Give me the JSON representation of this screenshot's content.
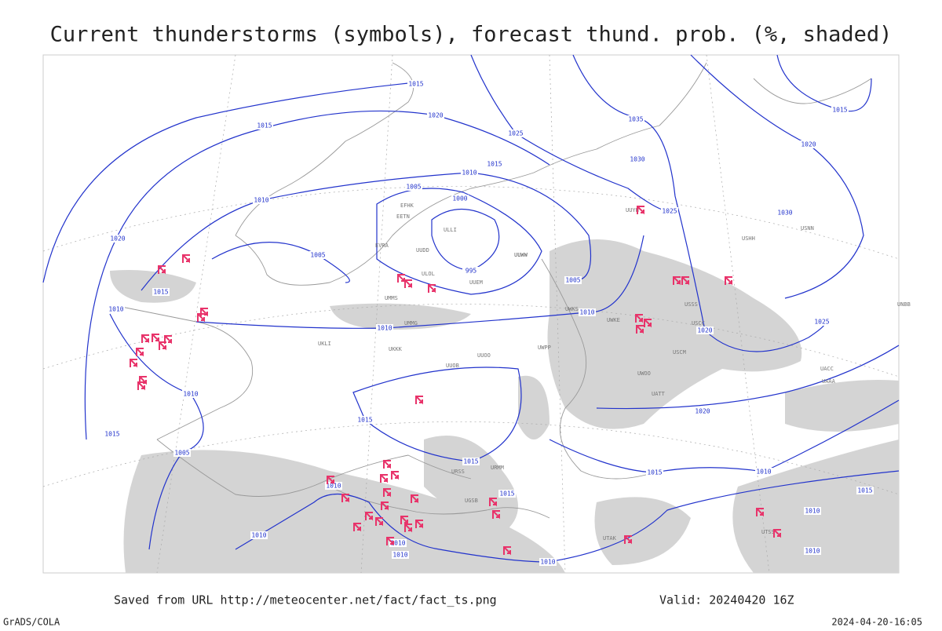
{
  "header": {
    "title": "Current thunderstorms (symbols), forecast thund. prob. (%, shaded)"
  },
  "footer": {
    "source": "Saved from URL http://meteocenter.net/fact/fact_ts.png",
    "valid": "Valid: 20240420 16Z",
    "credit": "GrADS/COLA",
    "timestamp": "2024-04-20-16:05"
  },
  "isobar_labels": [
    "1015",
    "1020",
    "1025",
    "1015",
    "1035",
    "1030",
    "1015",
    "1010",
    "1005",
    "1000",
    "1010",
    "1025",
    "1020",
    "1005",
    "995",
    "1005",
    "1015",
    "1010",
    "1010",
    "1010",
    "1020",
    "1025",
    "1020",
    "1015",
    "1030",
    "1010",
    "1015",
    "1020",
    "1015",
    "1005",
    "1015",
    "1015",
    "1010",
    "1010",
    "1015",
    "1015",
    "1010",
    "1010",
    "1010",
    "1010",
    "1010",
    "1010"
  ],
  "stations": [
    "ULLI",
    "ULOL",
    "UUEM",
    "UUWW",
    "UUDD",
    "ULWW",
    "EFHK",
    "EETN",
    "EVRA",
    "UMMS",
    "UMMG",
    "UKKK",
    "UKLI",
    "UUOB",
    "UUOO",
    "UWPP",
    "UWKS",
    "UWKE",
    "URMM",
    "URSS",
    "UGSB",
    "UUYH",
    "USSS",
    "USCC",
    "USCM",
    "UACC",
    "UAAA",
    "UATT",
    "UWOO",
    "USNN",
    "USHH",
    "UNBB",
    "UTAK",
    "UTSS"
  ]
}
